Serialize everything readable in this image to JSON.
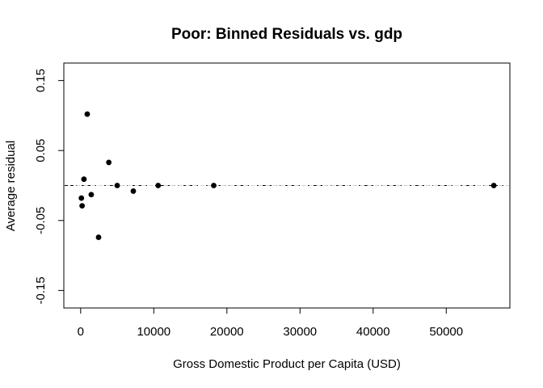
{
  "chart_data": {
    "type": "scatter",
    "title": "Poor: Binned Residuals vs. gdp",
    "xlabel": "Gross Domestic Product per Capita (USD)",
    "ylabel": "Average residual",
    "xlim": [
      -2300,
      58700
    ],
    "ylim": [
      -0.175,
      0.175
    ],
    "x_ticks": [
      0,
      10000,
      20000,
      30000,
      40000,
      50000
    ],
    "x_tick_labels": [
      "0",
      "10000",
      "20000",
      "30000",
      "40000",
      "50000"
    ],
    "y_ticks": [
      -0.15,
      -0.05,
      0.05,
      0.15
    ],
    "y_tick_labels": [
      "-0.15",
      "-0.05",
      "0.05",
      "0.15"
    ],
    "grid": false,
    "reference_lines": [
      {
        "y": 0,
        "style": "dashed",
        "color": "#000000"
      },
      {
        "y": 0,
        "style": "dashed",
        "color": "#d3d3d3"
      }
    ],
    "series": [
      {
        "x": [
          100,
          200,
          450,
          900,
          1450,
          2450,
          3850,
          5000,
          7200,
          10600,
          18200,
          56500
        ],
        "y": [
          -0.018,
          -0.029,
          0.009,
          0.102,
          -0.013,
          -0.074,
          0.033,
          0.0,
          -0.008,
          0.0,
          0.0,
          0.0
        ]
      }
    ],
    "point_color": "#000000"
  }
}
